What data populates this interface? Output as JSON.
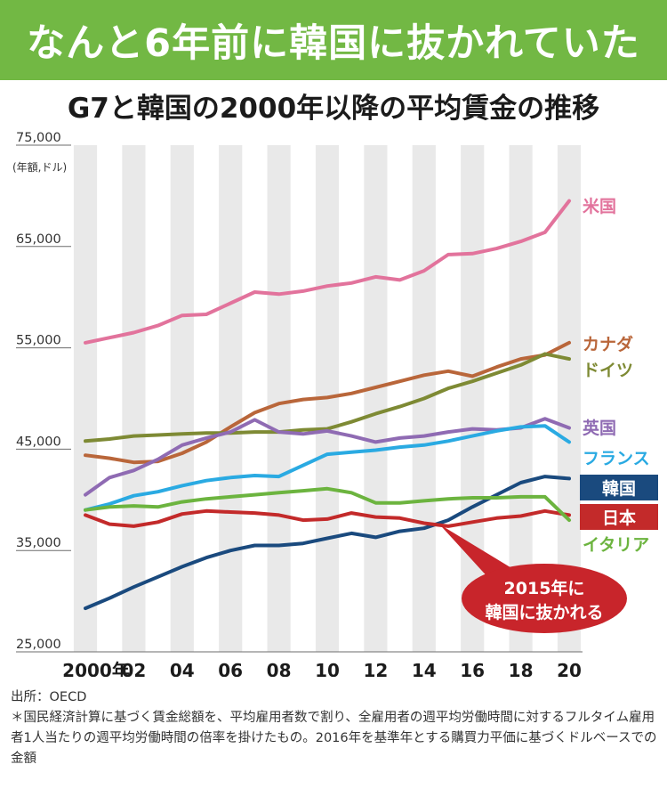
{
  "banner": {
    "headline": "なんと6年前に韓国に抜かれていた"
  },
  "source": "出所：OECD",
  "footnote": "＊国民経済計算に基づく賃金総額を、平均雇用者数で割り、全雇用者の週平均労働時間に対するフルタイム雇用者1人当たりの週平均労働時間の倍率を掛けたもの。2016年を基準年とする購買力平価に基づくドルベースでの金額",
  "chart_data": {
    "type": "line",
    "title": "G7と韓国の2000年以降の平均賃金の推移",
    "ylabel": "(年額,ドル)",
    "ylim": [
      25000,
      75000
    ],
    "yticks": [
      25000,
      35000,
      45000,
      55000,
      65000,
      75000
    ],
    "ytick_labels": [
      "25,000",
      "35,000",
      "45,000",
      "55,000",
      "65,000",
      "75,000"
    ],
    "x": [
      2000,
      2001,
      2002,
      2003,
      2004,
      2005,
      2006,
      2007,
      2008,
      2009,
      2010,
      2011,
      2012,
      2013,
      2014,
      2015,
      2016,
      2017,
      2018,
      2019,
      2020
    ],
    "xticks": [
      2000,
      2002,
      2004,
      2006,
      2008,
      2010,
      2012,
      2014,
      2016,
      2018,
      2020
    ],
    "xtick_labels": [
      "2000年",
      "02",
      "04",
      "06",
      "08",
      "10",
      "12",
      "14",
      "16",
      "18",
      "20"
    ],
    "grid": "vertical-bands",
    "legend": "right-inline",
    "series": [
      {
        "name": "米国",
        "color": "#e2739c",
        "values": [
          55500,
          56000,
          56500,
          57200,
          58200,
          58300,
          59400,
          60500,
          60300,
          60600,
          61100,
          61400,
          62000,
          61700,
          62600,
          64200,
          64300,
          64800,
          65500,
          66400,
          69500
        ]
      },
      {
        "name": "カナダ",
        "color": "#b9663a",
        "values": [
          44400,
          44100,
          43700,
          43800,
          44600,
          45700,
          47200,
          48600,
          49500,
          49900,
          50100,
          50500,
          51100,
          51700,
          52300,
          52700,
          52200,
          53100,
          53900,
          54300,
          55500
        ]
      },
      {
        "name": "ドイツ",
        "color": "#7e8a34",
        "values": [
          45800,
          46000,
          46300,
          46400,
          46500,
          46600,
          46600,
          46700,
          46700,
          46900,
          47000,
          47700,
          48500,
          49200,
          50000,
          51000,
          51700,
          52500,
          53300,
          54400,
          53900
        ]
      },
      {
        "name": "英国",
        "color": "#8f6bb3",
        "values": [
          40500,
          42200,
          42900,
          44000,
          45400,
          46100,
          46700,
          47900,
          46700,
          46500,
          46800,
          46300,
          45700,
          46100,
          46300,
          46700,
          47000,
          46900,
          47100,
          48000,
          47100
        ]
      },
      {
        "name": "フランス",
        "color": "#2aaae2",
        "values": [
          39000,
          39600,
          40400,
          40800,
          41400,
          41900,
          42200,
          42400,
          42300,
          43400,
          44500,
          44700,
          44900,
          45200,
          45400,
          45800,
          46300,
          46800,
          47200,
          47300,
          45700
        ]
      },
      {
        "name": "韓国",
        "color": "#1a4a7e",
        "values": [
          29300,
          30300,
          31400,
          32400,
          33400,
          34300,
          35000,
          35500,
          35500,
          35700,
          36200,
          36700,
          36300,
          36900,
          37200,
          38000,
          39300,
          40500,
          41700,
          42300,
          42100
        ]
      },
      {
        "name": "日本",
        "color": "#c32a2a",
        "values": [
          38500,
          37600,
          37400,
          37800,
          38600,
          38900,
          38800,
          38700,
          38500,
          38000,
          38100,
          38700,
          38300,
          38200,
          37700,
          37400,
          37800,
          38200,
          38400,
          38900,
          38500
        ]
      },
      {
        "name": "イタリア",
        "color": "#6cb43f",
        "values": [
          39000,
          39300,
          39400,
          39300,
          39800,
          40100,
          40300,
          40500,
          40700,
          40900,
          41100,
          40700,
          39700,
          39700,
          39900,
          40100,
          40200,
          40200,
          40300,
          40300,
          38000
        ]
      }
    ],
    "annotation": {
      "lines": [
        "2015年に",
        "韓国に抜かれる"
      ],
      "year": 2015,
      "value": 37600
    }
  }
}
